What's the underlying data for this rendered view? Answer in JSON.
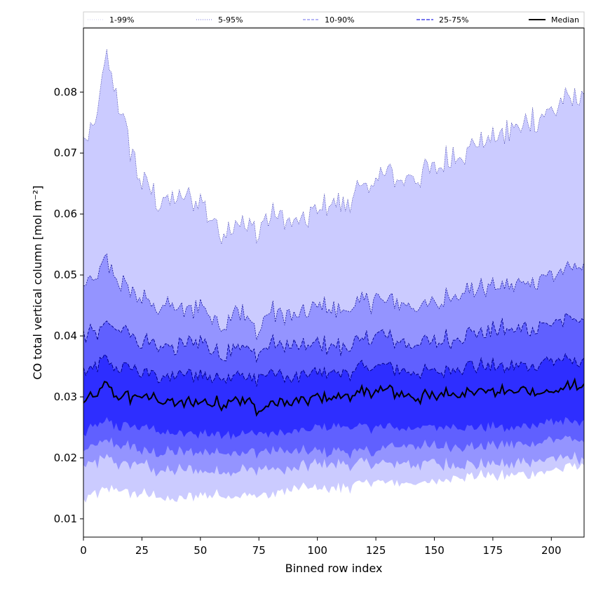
{
  "chart_data": {
    "type": "area",
    "xlabel": "Binned row index",
    "ylabel": "CO total vertical column [mol m⁻²]",
    "xlim": [
      0,
      214
    ],
    "ylim": [
      0.007,
      0.0905
    ],
    "xticks": [
      0,
      25,
      50,
      75,
      100,
      125,
      150,
      175,
      200
    ],
    "yticks": [
      0.01,
      0.02,
      0.03,
      0.04,
      0.05,
      0.06,
      0.07,
      0.08
    ],
    "ytick_labels": [
      "0.01",
      "0.02",
      "0.03",
      "0.04",
      "0.05",
      "0.06",
      "0.07",
      "0.08"
    ],
    "grid": false,
    "legend_position": "top",
    "legend": [
      {
        "label": "1-99%",
        "style": "dotted",
        "color": "#d0d0f0"
      },
      {
        "label": "5-95%",
        "style": "dotted",
        "color": "#7070d8"
      },
      {
        "label": "10-90%",
        "style": "dashed",
        "color": "#8a8af0"
      },
      {
        "label": "25-75%",
        "style": "dashed",
        "color": "#4a4ae8"
      },
      {
        "label": "Median",
        "style": "solid",
        "color": "#000000"
      }
    ],
    "colors": {
      "band_1_99": "#cbcbff",
      "band_5_95": "#9494ff",
      "band_10_90": "#6060ff",
      "band_25_75": "#2e2eff",
      "median": "#000000",
      "edge": "#00008b"
    },
    "profiles": {
      "x": [
        0,
        5,
        10,
        15,
        20,
        25,
        30,
        35,
        40,
        50,
        55,
        60,
        65,
        70,
        75,
        80,
        90,
        100,
        110,
        125,
        130,
        140,
        150,
        160,
        175,
        185,
        200,
        214
      ],
      "p99": [
        0.071,
        0.075,
        0.085,
        0.078,
        0.071,
        0.065,
        0.063,
        0.062,
        0.062,
        0.063,
        0.059,
        0.057,
        0.059,
        0.058,
        0.057,
        0.06,
        0.058,
        0.061,
        0.061,
        0.066,
        0.066,
        0.066,
        0.068,
        0.07,
        0.073,
        0.074,
        0.077,
        0.08
      ],
      "p95": [
        0.048,
        0.049,
        0.052,
        0.049,
        0.048,
        0.046,
        0.045,
        0.045,
        0.044,
        0.045,
        0.043,
        0.042,
        0.045,
        0.043,
        0.041,
        0.044,
        0.043,
        0.045,
        0.044,
        0.046,
        0.046,
        0.045,
        0.045,
        0.047,
        0.048,
        0.048,
        0.05,
        0.052
      ],
      "p90": [
        0.04,
        0.04,
        0.042,
        0.041,
        0.04,
        0.039,
        0.039,
        0.038,
        0.038,
        0.039,
        0.038,
        0.037,
        0.039,
        0.038,
        0.037,
        0.039,
        0.038,
        0.039,
        0.038,
        0.04,
        0.04,
        0.039,
        0.039,
        0.04,
        0.041,
        0.041,
        0.042,
        0.043
      ],
      "p75": [
        0.034,
        0.035,
        0.036,
        0.035,
        0.035,
        0.034,
        0.034,
        0.033,
        0.033,
        0.034,
        0.033,
        0.033,
        0.034,
        0.033,
        0.033,
        0.034,
        0.033,
        0.034,
        0.034,
        0.035,
        0.035,
        0.034,
        0.034,
        0.035,
        0.035,
        0.035,
        0.036,
        0.036
      ],
      "median": [
        0.029,
        0.03,
        0.032,
        0.03,
        0.03,
        0.03,
        0.03,
        0.029,
        0.029,
        0.029,
        0.029,
        0.029,
        0.03,
        0.029,
        0.028,
        0.029,
        0.029,
        0.03,
        0.03,
        0.031,
        0.031,
        0.03,
        0.03,
        0.031,
        0.031,
        0.031,
        0.031,
        0.032
      ],
      "p25": [
        0.024,
        0.025,
        0.026,
        0.025,
        0.025,
        0.025,
        0.025,
        0.024,
        0.024,
        0.024,
        0.024,
        0.024,
        0.024,
        0.024,
        0.024,
        0.024,
        0.024,
        0.025,
        0.025,
        0.025,
        0.025,
        0.025,
        0.025,
        0.025,
        0.025,
        0.025,
        0.026,
        0.026
      ],
      "p10": [
        0.021,
        0.022,
        0.023,
        0.022,
        0.022,
        0.021,
        0.021,
        0.021,
        0.021,
        0.021,
        0.021,
        0.021,
        0.021,
        0.021,
        0.021,
        0.021,
        0.021,
        0.021,
        0.021,
        0.021,
        0.022,
        0.022,
        0.022,
        0.022,
        0.022,
        0.022,
        0.023,
        0.023
      ],
      "p5": [
        0.019,
        0.019,
        0.02,
        0.019,
        0.019,
        0.019,
        0.018,
        0.018,
        0.018,
        0.018,
        0.018,
        0.018,
        0.018,
        0.018,
        0.018,
        0.018,
        0.018,
        0.019,
        0.019,
        0.019,
        0.019,
        0.019,
        0.019,
        0.019,
        0.019,
        0.019,
        0.02,
        0.02
      ],
      "p1": [
        0.013,
        0.014,
        0.015,
        0.015,
        0.014,
        0.014,
        0.014,
        0.013,
        0.013,
        0.014,
        0.014,
        0.014,
        0.014,
        0.014,
        0.014,
        0.014,
        0.015,
        0.015,
        0.015,
        0.016,
        0.016,
        0.016,
        0.016,
        0.017,
        0.017,
        0.017,
        0.018,
        0.019
      ]
    }
  }
}
